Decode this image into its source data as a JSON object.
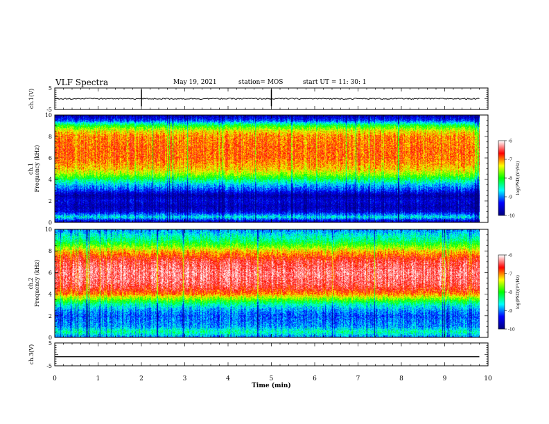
{
  "header": {
    "title": "VLF Spectra",
    "date": "May 19, 2021",
    "station": "station= MOS",
    "start": "start  UT =   11: 30: 1"
  },
  "colors": {
    "spectrogram_stops": [
      "#000080",
      "#0000ff",
      "#00ffff",
      "#00ff00",
      "#ffff00",
      "#ff0000",
      "#ffffff"
    ],
    "background": "#ffffff",
    "axes": "#000000"
  },
  "chart_data": [
    {
      "type": "line",
      "panel": "ch1-waveform",
      "ylabel": "ch.1(V)",
      "ylim": [
        -5,
        5
      ],
      "yticks": [
        "5",
        "-5"
      ],
      "xlim": [
        0,
        10
      ],
      "series": [
        {
          "x": [
            0,
            9.8
          ],
          "values": [
            0,
            0
          ]
        }
      ]
    },
    {
      "type": "heatmap",
      "panel": "ch1-spectrogram",
      "ylabel_line1": "ch.1",
      "ylabel_line2": "Frequency  (kHz)",
      "ylim": [
        0,
        10
      ],
      "yticks": [
        "0",
        "2",
        "4",
        "6",
        "8",
        "10"
      ],
      "xlim": [
        0,
        10
      ],
      "data_end_min": 9.8,
      "colorbar": {
        "label": "log(PSD)(V²/Hz)",
        "range": [
          -10,
          -6
        ],
        "ticks": [
          "-6",
          "-7",
          "-8",
          "-9",
          "-10"
        ]
      },
      "profile": {
        "freq_khz": [
          0,
          0.5,
          1,
          1.5,
          2,
          2.5,
          3,
          3.5,
          4,
          4.5,
          5,
          6,
          7,
          8,
          8.5,
          9,
          9.5,
          10
        ],
        "log_psd": [
          -9.8,
          -8.6,
          -9.5,
          -9.7,
          -9.5,
          -9.8,
          -9.2,
          -8.8,
          -8.2,
          -7.6,
          -7.2,
          -6.9,
          -6.9,
          -7.0,
          -7.3,
          -8.0,
          -9.2,
          -9.8
        ]
      }
    },
    {
      "type": "heatmap",
      "panel": "ch2-spectrogram",
      "ylabel_line1": "ch.2",
      "ylabel_line2": "Frequency  (kHz)",
      "ylim": [
        0,
        10
      ],
      "yticks": [
        "0",
        "2",
        "4",
        "6",
        "8",
        "10"
      ],
      "xlim": [
        0,
        10
      ],
      "data_end_min": 9.8,
      "colorbar": {
        "label": "log(PSD)(V²/Hz)",
        "range": [
          -10,
          -6
        ],
        "ticks": [
          "-6",
          "-7",
          "-8",
          "-9",
          "-10"
        ]
      },
      "profile": {
        "freq_khz": [
          0,
          0.5,
          1,
          2,
          2.5,
          3,
          3.5,
          4,
          4.5,
          5,
          6,
          7,
          7.5,
          8,
          8.5,
          9,
          9.5,
          10
        ],
        "log_psd": [
          -9.0,
          -8.4,
          -8.9,
          -9.1,
          -8.9,
          -8.5,
          -7.8,
          -7.0,
          -6.6,
          -6.4,
          -6.3,
          -6.5,
          -6.8,
          -7.2,
          -7.8,
          -8.3,
          -8.6,
          -9.0
        ]
      }
    },
    {
      "type": "line",
      "panel": "ch3-waveform",
      "ylabel": "ch.3(V)",
      "ylim": [
        -5,
        5
      ],
      "yticks": [
        "5",
        "-5"
      ],
      "xlim": [
        0,
        10
      ],
      "series": [
        {
          "x": [
            0,
            9.8
          ],
          "values": [
            -1,
            -1
          ]
        }
      ]
    }
  ],
  "xaxis": {
    "label": "Time  (min)",
    "ticks": [
      "0",
      "1",
      "2",
      "3",
      "4",
      "5",
      "6",
      "7",
      "8",
      "9",
      "10"
    ]
  }
}
